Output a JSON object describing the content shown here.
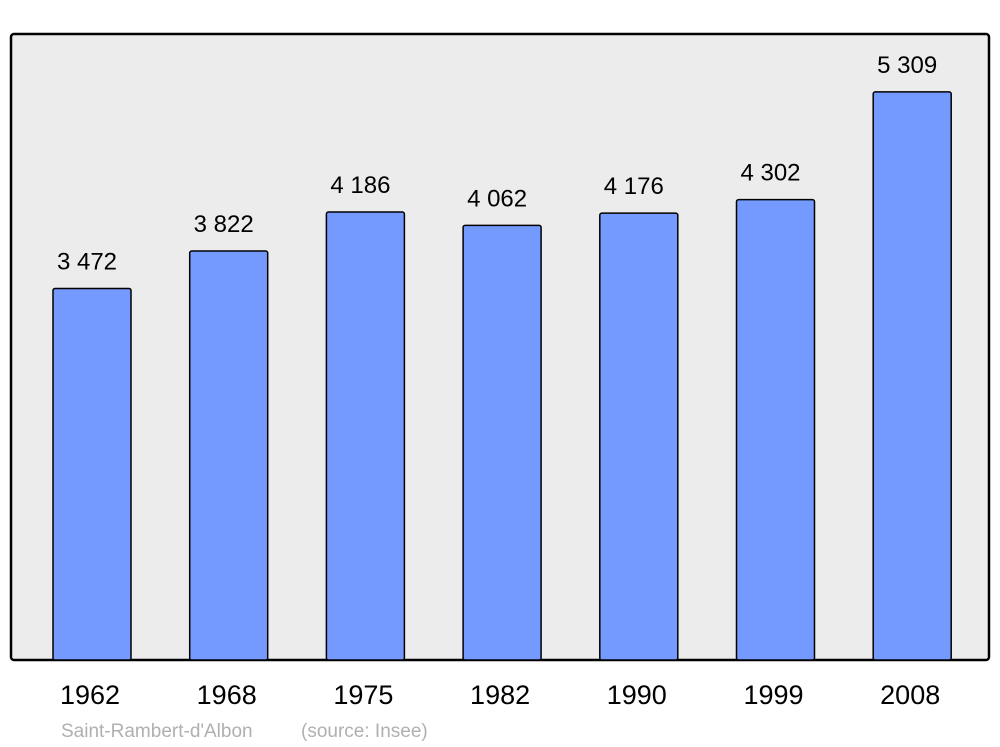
{
  "chart_data": {
    "type": "bar",
    "categories": [
      "1962",
      "1968",
      "1975",
      "1982",
      "1990",
      "1999",
      "2008"
    ],
    "values": [
      3472,
      3822,
      4186,
      4062,
      4176,
      4302,
      5309
    ],
    "value_labels": [
      "3 472",
      "3 822",
      "4 186",
      "4 062",
      "4 176",
      "4 302",
      "5 309"
    ],
    "title": "",
    "xlabel": "",
    "ylabel": "",
    "ylim": [
      0,
      5850
    ],
    "grid": false,
    "footer": {
      "place": "Saint-Rambert-d'Albon",
      "source": "(source: Insee)"
    },
    "colors": {
      "bar": "#7499ff",
      "plot_background": "#ececec",
      "footer_text": "#b0b0b0"
    }
  }
}
